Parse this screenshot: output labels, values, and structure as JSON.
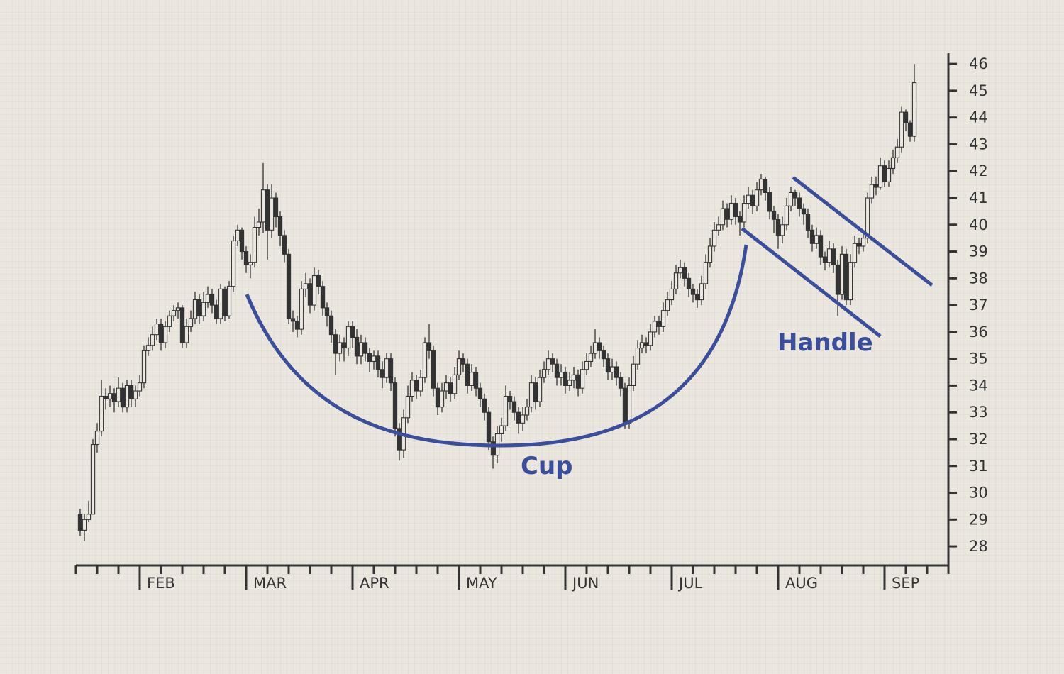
{
  "chart_data": {
    "type": "candlestick",
    "annotations": [
      "Cup",
      "Handle"
    ],
    "up_fill": "#ebe7df",
    "down_fill": "#333333",
    "color": "#333333",
    "annotation_color": "#3a4e9c",
    "xlim": [
      0,
      205
    ],
    "ylim": [
      27.5,
      46.4
    ],
    "xticks": [
      {
        "value": 15,
        "label": "FEB"
      },
      {
        "value": 40,
        "label": "MAR"
      },
      {
        "value": 65,
        "label": "APR"
      },
      {
        "value": 90,
        "label": "MAY"
      },
      {
        "value": 115,
        "label": "JUN"
      },
      {
        "value": 140,
        "label": "JUL"
      },
      {
        "value": 165,
        "label": "AUG"
      },
      {
        "value": 190,
        "label": "SEP"
      }
    ],
    "xminorticks": [
      0,
      5,
      10,
      15,
      20,
      25,
      30,
      35,
      40,
      45,
      50,
      55,
      60,
      65,
      70,
      75,
      80,
      85,
      90,
      95,
      100,
      105,
      110,
      115,
      120,
      125,
      130,
      135,
      140,
      145,
      150,
      155,
      160,
      165,
      170,
      175,
      180,
      185,
      190,
      195,
      200,
      205
    ],
    "yticks": [
      28,
      29,
      30,
      31,
      32,
      33,
      34,
      35,
      36,
      37,
      38,
      39,
      40,
      41,
      42,
      43,
      44,
      45,
      46
    ],
    "x": [
      1,
      2,
      3,
      4,
      5,
      6,
      7,
      8,
      9,
      10,
      11,
      12,
      13,
      14,
      15,
      16,
      17,
      18,
      19,
      20,
      21,
      22,
      23,
      24,
      25,
      26,
      27,
      28,
      29,
      30,
      31,
      32,
      33,
      34,
      35,
      36,
      37,
      38,
      39,
      40,
      41,
      42,
      43,
      44,
      45,
      46,
      47,
      48,
      49,
      50,
      51,
      52,
      53,
      54,
      55,
      56,
      57,
      58,
      59,
      60,
      61,
      62,
      63,
      64,
      65,
      66,
      67,
      68,
      69,
      70,
      71,
      72,
      73,
      74,
      75,
      76,
      77,
      78,
      79,
      80,
      81,
      82,
      83,
      84,
      85,
      86,
      87,
      88,
      89,
      90,
      91,
      92,
      93,
      94,
      95,
      96,
      97,
      98,
      99,
      100,
      101,
      102,
      103,
      104,
      105,
      106,
      107,
      108,
      109,
      110,
      111,
      112,
      113,
      114,
      115,
      116,
      117,
      118,
      119,
      120,
      121,
      122,
      123,
      124,
      125,
      126,
      127,
      128,
      129,
      130,
      131,
      132,
      133,
      134,
      135,
      136,
      137,
      138,
      139,
      140,
      141,
      142,
      143,
      144,
      145,
      146,
      147,
      148,
      149,
      150,
      151,
      152,
      153,
      154,
      155,
      156,
      157,
      158,
      159,
      160,
      161,
      162,
      163,
      164,
      165,
      166,
      167,
      168,
      169,
      170,
      171,
      172,
      173,
      174,
      175,
      176,
      177,
      178,
      179,
      180,
      181,
      182,
      183,
      184,
      185,
      186,
      187,
      188,
      189,
      190,
      191,
      192,
      193,
      194,
      195,
      196,
      197
    ],
    "values": [
      [
        29.2,
        29.4,
        28.4,
        28.6
      ],
      [
        28.6,
        29.2,
        28.2,
        29.0
      ],
      [
        29.0,
        29.7,
        28.9,
        29.2
      ],
      [
        29.2,
        32.0,
        29.9,
        31.8
      ],
      [
        31.8,
        32.6,
        31.5,
        32.3
      ],
      [
        32.3,
        34.2,
        32.1,
        33.6
      ],
      [
        33.6,
        33.9,
        33.1,
        33.5
      ],
      [
        33.5,
        34.0,
        33.2,
        33.7
      ],
      [
        33.7,
        33.9,
        33.0,
        33.4
      ],
      [
        33.4,
        34.3,
        33.2,
        33.9
      ],
      [
        33.9,
        34.1,
        33.0,
        33.2
      ],
      [
        33.2,
        34.2,
        33.0,
        34.0
      ],
      [
        34.0,
        34.2,
        33.2,
        33.5
      ],
      [
        33.5,
        34.0,
        33.2,
        33.8
      ],
      [
        33.8,
        34.4,
        33.6,
        34.1
      ],
      [
        34.1,
        35.5,
        33.9,
        35.3
      ],
      [
        35.3,
        35.8,
        35.1,
        35.5
      ],
      [
        35.5,
        36.2,
        35.3,
        35.9
      ],
      [
        35.9,
        36.5,
        35.7,
        36.3
      ],
      [
        36.3,
        36.5,
        35.3,
        35.6
      ],
      [
        35.6,
        36.4,
        35.4,
        36.2
      ],
      [
        36.2,
        36.8,
        36.0,
        36.6
      ],
      [
        36.6,
        37.0,
        36.4,
        36.8
      ],
      [
        36.8,
        37.1,
        36.5,
        36.9
      ],
      [
        36.9,
        37.0,
        35.4,
        35.6
      ],
      [
        35.6,
        36.5,
        35.4,
        36.2
      ],
      [
        36.2,
        36.8,
        36.0,
        36.5
      ],
      [
        36.5,
        37.5,
        36.3,
        37.2
      ],
      [
        37.2,
        37.4,
        36.3,
        36.6
      ],
      [
        36.6,
        37.5,
        36.4,
        37.1
      ],
      [
        37.1,
        37.7,
        36.9,
        37.4
      ],
      [
        37.4,
        37.6,
        36.7,
        37.0
      ],
      [
        37.0,
        37.2,
        36.3,
        36.5
      ],
      [
        36.5,
        37.8,
        36.3,
        37.6
      ],
      [
        37.6,
        37.7,
        36.4,
        36.6
      ],
      [
        36.6,
        37.9,
        36.5,
        37.7
      ],
      [
        37.7,
        39.6,
        37.5,
        39.4
      ],
      [
        39.4,
        40.0,
        39.2,
        39.8
      ],
      [
        39.8,
        39.9,
        38.7,
        39.0
      ],
      [
        39.0,
        39.2,
        38.2,
        38.5
      ],
      [
        38.5,
        38.9,
        38.0,
        38.6
      ],
      [
        38.6,
        40.3,
        38.4,
        39.9
      ],
      [
        39.9,
        40.6,
        39.6,
        40.1
      ],
      [
        40.1,
        42.3,
        39.7,
        41.3
      ],
      [
        41.3,
        41.5,
        38.7,
        39.8
      ],
      [
        39.8,
        41.5,
        39.5,
        41.0
      ],
      [
        41.0,
        41.2,
        39.9,
        40.3
      ],
      [
        40.3,
        40.5,
        39.2,
        39.6
      ],
      [
        39.6,
        39.8,
        38.6,
        38.9
      ],
      [
        38.9,
        39.1,
        36.3,
        36.5
      ],
      [
        36.5,
        36.8,
        36.0,
        36.4
      ],
      [
        36.4,
        36.6,
        35.8,
        36.1
      ],
      [
        36.1,
        37.9,
        35.9,
        37.6
      ],
      [
        37.6,
        38.2,
        37.3,
        37.8
      ],
      [
        37.8,
        38.0,
        36.7,
        37.0
      ],
      [
        37.0,
        38.4,
        36.8,
        38.1
      ],
      [
        38.1,
        38.3,
        37.4,
        37.7
      ],
      [
        37.7,
        37.9,
        36.6,
        36.9
      ],
      [
        36.9,
        37.1,
        36.2,
        36.6
      ],
      [
        36.6,
        36.8,
        35.6,
        35.9
      ],
      [
        35.9,
        36.1,
        34.4,
        35.2
      ],
      [
        35.2,
        35.9,
        34.9,
        35.6
      ],
      [
        35.6,
        35.8,
        34.9,
        35.4
      ],
      [
        35.4,
        36.4,
        35.1,
        36.2
      ],
      [
        36.2,
        36.4,
        35.4,
        35.8
      ],
      [
        35.8,
        36.1,
        34.8,
        35.1
      ],
      [
        35.1,
        35.9,
        34.8,
        35.6
      ],
      [
        35.6,
        35.8,
        34.9,
        35.2
      ],
      [
        35.2,
        35.4,
        34.5,
        34.9
      ],
      [
        34.9,
        35.3,
        34.6,
        35.1
      ],
      [
        35.1,
        35.3,
        34.3,
        34.6
      ],
      [
        34.6,
        34.9,
        33.9,
        34.3
      ],
      [
        34.3,
        35.2,
        34.1,
        35.0
      ],
      [
        35.0,
        35.2,
        33.8,
        34.1
      ],
      [
        34.1,
        34.3,
        32.1,
        32.4
      ],
      [
        32.4,
        32.6,
        31.2,
        31.6
      ],
      [
        31.6,
        33.1,
        31.3,
        32.8
      ],
      [
        32.8,
        34.0,
        32.6,
        33.6
      ],
      [
        33.6,
        34.5,
        33.4,
        34.2
      ],
      [
        34.2,
        34.4,
        33.5,
        33.8
      ],
      [
        33.8,
        34.6,
        33.6,
        34.3
      ],
      [
        34.3,
        35.8,
        34.1,
        35.6
      ],
      [
        35.6,
        36.3,
        35.0,
        35.3
      ],
      [
        35.3,
        35.5,
        33.6,
        33.9
      ],
      [
        33.9,
        34.1,
        32.9,
        33.2
      ],
      [
        33.2,
        34.1,
        33.0,
        33.8
      ],
      [
        33.8,
        34.4,
        33.5,
        34.1
      ],
      [
        34.1,
        34.3,
        33.4,
        33.7
      ],
      [
        33.7,
        34.7,
        33.5,
        34.4
      ],
      [
        34.4,
        35.3,
        34.2,
        35.0
      ],
      [
        35.0,
        35.2,
        34.5,
        34.8
      ],
      [
        34.8,
        35.0,
        33.7,
        34.0
      ],
      [
        34.0,
        34.8,
        33.8,
        34.5
      ],
      [
        34.5,
        34.7,
        33.6,
        33.9
      ],
      [
        33.9,
        34.1,
        33.2,
        33.5
      ],
      [
        33.5,
        33.7,
        32.7,
        33.0
      ],
      [
        33.0,
        33.2,
        31.6,
        31.9
      ],
      [
        31.9,
        32.1,
        30.9,
        31.4
      ],
      [
        31.4,
        32.5,
        31.1,
        32.2
      ],
      [
        32.2,
        32.8,
        31.9,
        32.5
      ],
      [
        32.5,
        34.0,
        32.3,
        33.6
      ],
      [
        33.6,
        33.8,
        33.1,
        33.4
      ],
      [
        33.4,
        33.6,
        32.7,
        33.0
      ],
      [
        33.0,
        33.2,
        32.2,
        32.6
      ],
      [
        32.6,
        33.2,
        32.3,
        32.9
      ],
      [
        32.9,
        33.5,
        32.7,
        33.2
      ],
      [
        33.2,
        34.4,
        33.0,
        34.1
      ],
      [
        34.1,
        34.3,
        33.1,
        33.4
      ],
      [
        33.4,
        34.6,
        33.2,
        34.3
      ],
      [
        34.3,
        34.9,
        34.1,
        34.6
      ],
      [
        34.6,
        35.3,
        34.4,
        35.0
      ],
      [
        35.0,
        35.2,
        34.5,
        34.8
      ],
      [
        34.8,
        35.0,
        34.0,
        34.3
      ],
      [
        34.3,
        34.8,
        34.0,
        34.5
      ],
      [
        34.5,
        34.7,
        33.7,
        34.0
      ],
      [
        34.0,
        34.5,
        33.8,
        34.2
      ],
      [
        34.2,
        34.7,
        33.9,
        34.4
      ],
      [
        34.4,
        34.6,
        33.6,
        33.9
      ],
      [
        33.9,
        34.9,
        33.7,
        34.6
      ],
      [
        34.6,
        35.2,
        34.4,
        34.9
      ],
      [
        34.9,
        35.5,
        34.7,
        35.2
      ],
      [
        35.2,
        36.1,
        35.0,
        35.6
      ],
      [
        35.6,
        35.8,
        35.0,
        35.3
      ],
      [
        35.3,
        35.5,
        34.7,
        35.0
      ],
      [
        35.0,
        35.2,
        34.2,
        34.5
      ],
      [
        34.5,
        35.0,
        34.2,
        34.7
      ],
      [
        34.7,
        34.9,
        34.0,
        34.3
      ],
      [
        34.3,
        34.5,
        33.6,
        33.9
      ],
      [
        33.9,
        34.1,
        32.4,
        32.6
      ],
      [
        32.6,
        34.3,
        32.4,
        34.0
      ],
      [
        34.0,
        35.1,
        33.8,
        34.8
      ],
      [
        34.8,
        35.7,
        34.6,
        35.4
      ],
      [
        35.4,
        35.9,
        35.2,
        35.6
      ],
      [
        35.6,
        35.8,
        35.2,
        35.5
      ],
      [
        35.5,
        36.3,
        35.3,
        36.0
      ],
      [
        36.0,
        36.6,
        35.8,
        36.4
      ],
      [
        36.4,
        36.6,
        35.9,
        36.2
      ],
      [
        36.2,
        37.1,
        36.0,
        36.8
      ],
      [
        36.8,
        37.5,
        36.6,
        37.2
      ],
      [
        37.2,
        37.9,
        37.0,
        37.6
      ],
      [
        37.6,
        38.5,
        37.4,
        38.2
      ],
      [
        38.2,
        38.7,
        38.0,
        38.4
      ],
      [
        38.4,
        38.6,
        37.7,
        38.0
      ],
      [
        38.0,
        38.2,
        37.3,
        37.6
      ],
      [
        37.6,
        37.8,
        37.1,
        37.4
      ],
      [
        37.4,
        37.6,
        36.9,
        37.2
      ],
      [
        37.2,
        38.1,
        37.0,
        37.8
      ],
      [
        37.8,
        38.9,
        37.6,
        38.6
      ],
      [
        38.6,
        39.5,
        38.4,
        39.2
      ],
      [
        39.2,
        40.1,
        39.0,
        39.8
      ],
      [
        39.8,
        40.3,
        39.6,
        40.0
      ],
      [
        40.0,
        40.9,
        39.8,
        40.6
      ],
      [
        40.6,
        40.8,
        39.9,
        40.2
      ],
      [
        40.2,
        41.1,
        40.0,
        40.8
      ],
      [
        40.8,
        41.0,
        40.0,
        40.3
      ],
      [
        40.3,
        40.5,
        39.6,
        40.1
      ],
      [
        40.1,
        41.1,
        39.9,
        40.8
      ],
      [
        40.8,
        41.4,
        40.6,
        41.1
      ],
      [
        41.1,
        41.3,
        40.4,
        40.7
      ],
      [
        40.7,
        41.6,
        40.5,
        41.3
      ],
      [
        41.3,
        41.9,
        41.1,
        41.7
      ],
      [
        41.7,
        41.8,
        40.9,
        41.2
      ],
      [
        41.2,
        41.4,
        40.2,
        40.5
      ],
      [
        40.5,
        40.7,
        39.7,
        40.2
      ],
      [
        40.2,
        40.4,
        39.1,
        39.6
      ],
      [
        39.6,
        40.3,
        39.3,
        40.0
      ],
      [
        40.0,
        41.0,
        39.8,
        40.7
      ],
      [
        40.7,
        41.4,
        40.5,
        41.2
      ],
      [
        41.2,
        41.3,
        40.7,
        41.0
      ],
      [
        41.0,
        41.2,
        40.3,
        40.6
      ],
      [
        40.6,
        40.8,
        40.0,
        40.4
      ],
      [
        40.4,
        40.6,
        39.5,
        39.8
      ],
      [
        39.8,
        40.0,
        39.0,
        39.3
      ],
      [
        39.3,
        39.9,
        39.1,
        39.6
      ],
      [
        39.6,
        39.8,
        38.5,
        38.8
      ],
      [
        38.8,
        39.0,
        38.3,
        38.6
      ],
      [
        38.6,
        39.4,
        38.4,
        39.1
      ],
      [
        39.1,
        39.3,
        38.2,
        38.5
      ],
      [
        38.5,
        38.7,
        36.6,
        37.4
      ],
      [
        37.4,
        39.2,
        37.2,
        38.9
      ],
      [
        38.9,
        39.1,
        37.0,
        37.2
      ],
      [
        37.2,
        38.9,
        37.0,
        38.6
      ],
      [
        38.6,
        39.6,
        38.4,
        39.3
      ],
      [
        39.3,
        39.5,
        38.9,
        39.2
      ],
      [
        39.2,
        39.8,
        39.0,
        39.5
      ],
      [
        39.5,
        41.2,
        39.3,
        41.0
      ],
      [
        41.0,
        41.8,
        40.8,
        41.5
      ],
      [
        41.5,
        41.8,
        41.1,
        41.4
      ],
      [
        41.4,
        42.5,
        41.3,
        42.2
      ],
      [
        42.2,
        42.4,
        41.4,
        41.6
      ],
      [
        41.6,
        42.4,
        41.4,
        42.1
      ],
      [
        42.1,
        42.8,
        41.9,
        42.5
      ],
      [
        42.5,
        43.2,
        42.3,
        42.9
      ],
      [
        42.9,
        44.4,
        42.7,
        44.2
      ],
      [
        44.2,
        44.3,
        43.5,
        43.8
      ],
      [
        43.8,
        43.9,
        43.1,
        43.3
      ],
      [
        43.3,
        46.0,
        43.1,
        45.3
      ]
    ]
  }
}
